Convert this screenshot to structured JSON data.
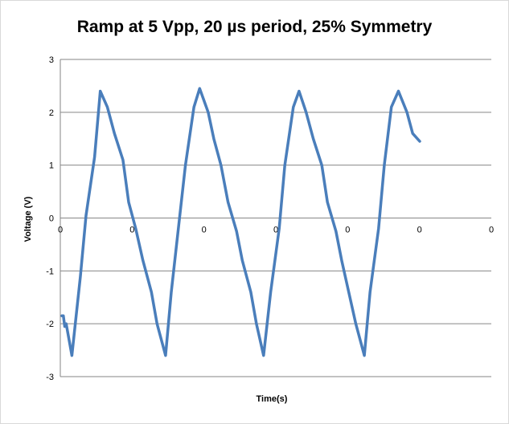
{
  "chart_data": {
    "type": "line",
    "title": "Ramp at 5 Vpp, 20 µs period, 25% Symmetry",
    "xlabel": "Time(s)",
    "ylabel": "Voltage (V)",
    "ylim": [
      -3,
      3
    ],
    "y_ticks": [
      "3",
      "2",
      "1",
      "0",
      "-1",
      "-2",
      "-3"
    ],
    "x_tick_labels": [
      "0",
      "0",
      "0",
      "0",
      "0",
      "0",
      "0"
    ],
    "grid": true,
    "legend": "none",
    "series_color": "#4a7ebb",
    "series": [
      {
        "x": [
          0,
          0.2,
          0.4,
          0.6,
          1.4,
          2.6,
          3.4,
          4.6,
          5.4,
          6.4,
          7.4,
          8.6,
          9.4,
          10.4,
          11.4,
          12.6,
          13.4,
          14.6,
          15.4,
          16.4,
          17.4,
          18.6,
          19.4,
          20.6,
          21.4,
          22.4,
          23.4,
          24.6,
          25.4,
          26.6,
          27.4,
          28.4,
          29.4,
          30.6,
          31.4,
          32.6,
          33.4,
          34.4,
          35.4,
          36.6,
          37.4,
          38.6,
          39.4,
          40.4,
          41.4,
          42.6,
          43.4,
          44.6,
          45.4,
          46.4,
          47.4,
          48.6,
          49.4,
          50.4
        ],
        "y": [
          -1.85,
          -1.85,
          -2.05,
          -2.0,
          -2.6,
          -1.1,
          0.05,
          1.15,
          2.4,
          2.1,
          1.6,
          1.1,
          0.3,
          -0.2,
          -0.8,
          -1.4,
          -2.0,
          -2.6,
          -1.4,
          -0.2,
          1.0,
          2.1,
          2.45,
          2.0,
          1.5,
          1.0,
          0.3,
          -0.25,
          -0.8,
          -1.4,
          -2.0,
          -2.6,
          -1.4,
          -0.2,
          1.0,
          2.1,
          2.4,
          2.0,
          1.5,
          1.0,
          0.3,
          -0.25,
          -0.8,
          -1.4,
          -2.0,
          -2.6,
          -1.4,
          -0.2,
          1.0,
          2.1,
          2.4,
          2.0,
          1.6,
          1.45
        ]
      }
    ]
  }
}
